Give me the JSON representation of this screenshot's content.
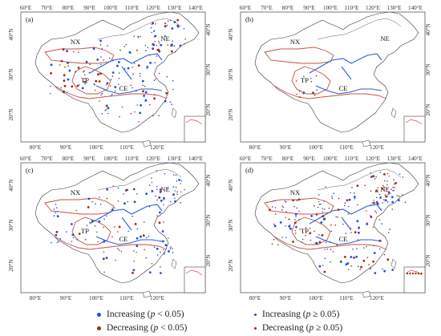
{
  "axes": {
    "lon_ticks": [
      "60°E",
      "70°E",
      "80°E",
      "90°E",
      "100°E",
      "110°E",
      "120°E",
      "130°E",
      "140°E"
    ],
    "bottom_lon_ticks": [
      "80°E",
      "90°E",
      "100°E",
      "110°E",
      "120°E"
    ],
    "lat_ticks": [
      "40°N",
      "30°N",
      "20°N"
    ]
  },
  "regions": {
    "nx": "NX",
    "ne": "NE",
    "tp": "TP",
    "ce": "CE"
  },
  "panels": [
    {
      "id": "a",
      "label": "(a)"
    },
    {
      "id": "b",
      "label": "(b)"
    },
    {
      "id": "c",
      "label": "(c)"
    },
    {
      "id": "d",
      "label": "(d)"
    }
  ],
  "colors": {
    "increasing": "#1f4fe0",
    "decreasing": "#9b2d1a",
    "boundary": "#c8513f",
    "river": "#2b5fd8",
    "outline": "#333333",
    "marker_yellow": "#e8b62a"
  },
  "legend": {
    "items": [
      {
        "key": "inc_sig",
        "text_pre": "Increasing (",
        "p": "p",
        "text_post": " < 0.05)",
        "color": "#1f4fe0",
        "size": "big"
      },
      {
        "key": "inc_ns",
        "text_pre": "Increasing (",
        "p": "p",
        "text_post": " ≥ 0.05)",
        "color": "#1f4fe0",
        "size": "small"
      },
      {
        "key": "dec_sig",
        "text_pre": "Decreasing (",
        "p": "p",
        "text_post": " < 0.05)",
        "color": "#9b2d1a",
        "size": "big"
      },
      {
        "key": "dec_ns",
        "text_pre": "Decreasing (",
        "p": "p",
        "text_post": " ≥ 0.05)",
        "color": "#9b2d1a",
        "size": "small"
      }
    ]
  }
}
